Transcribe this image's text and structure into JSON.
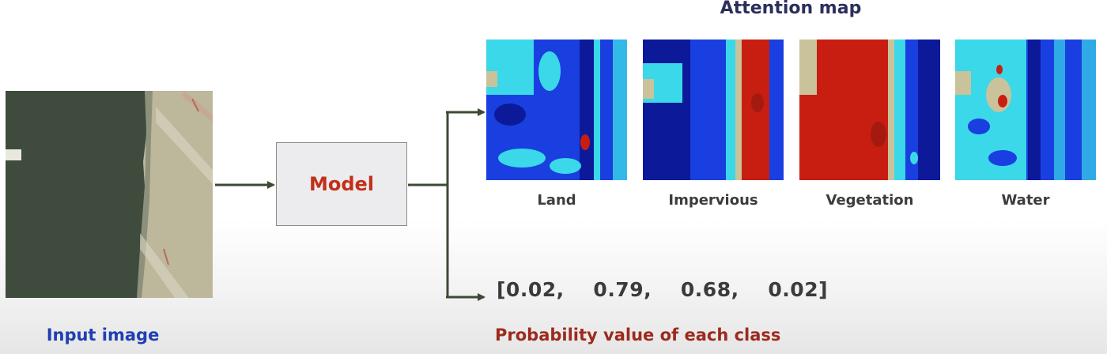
{
  "title": "Attention map",
  "input": {
    "label": "Input image"
  },
  "model": {
    "label": "Model"
  },
  "attention_maps": [
    {
      "label": "Land"
    },
    {
      "label": "Impervious"
    },
    {
      "label": "Vegetation"
    },
    {
      "label": "Water"
    }
  ],
  "probabilities": {
    "text": "[0.02,    0.79,    0.68,    0.02]",
    "label": "Probability value of each class"
  },
  "colors": {
    "title": "#2a2f5b",
    "input_label": "#1f3fb3",
    "model_label": "#c2301a",
    "prob_label": "#9c2a1d",
    "arrow": "#3d4a33",
    "heat_blue": "#1a3fe0",
    "heat_navy": "#0c1a9a",
    "heat_cyan": "#3ad8e8",
    "heat_red": "#c81e12",
    "heat_tan": "#c9c29a"
  }
}
